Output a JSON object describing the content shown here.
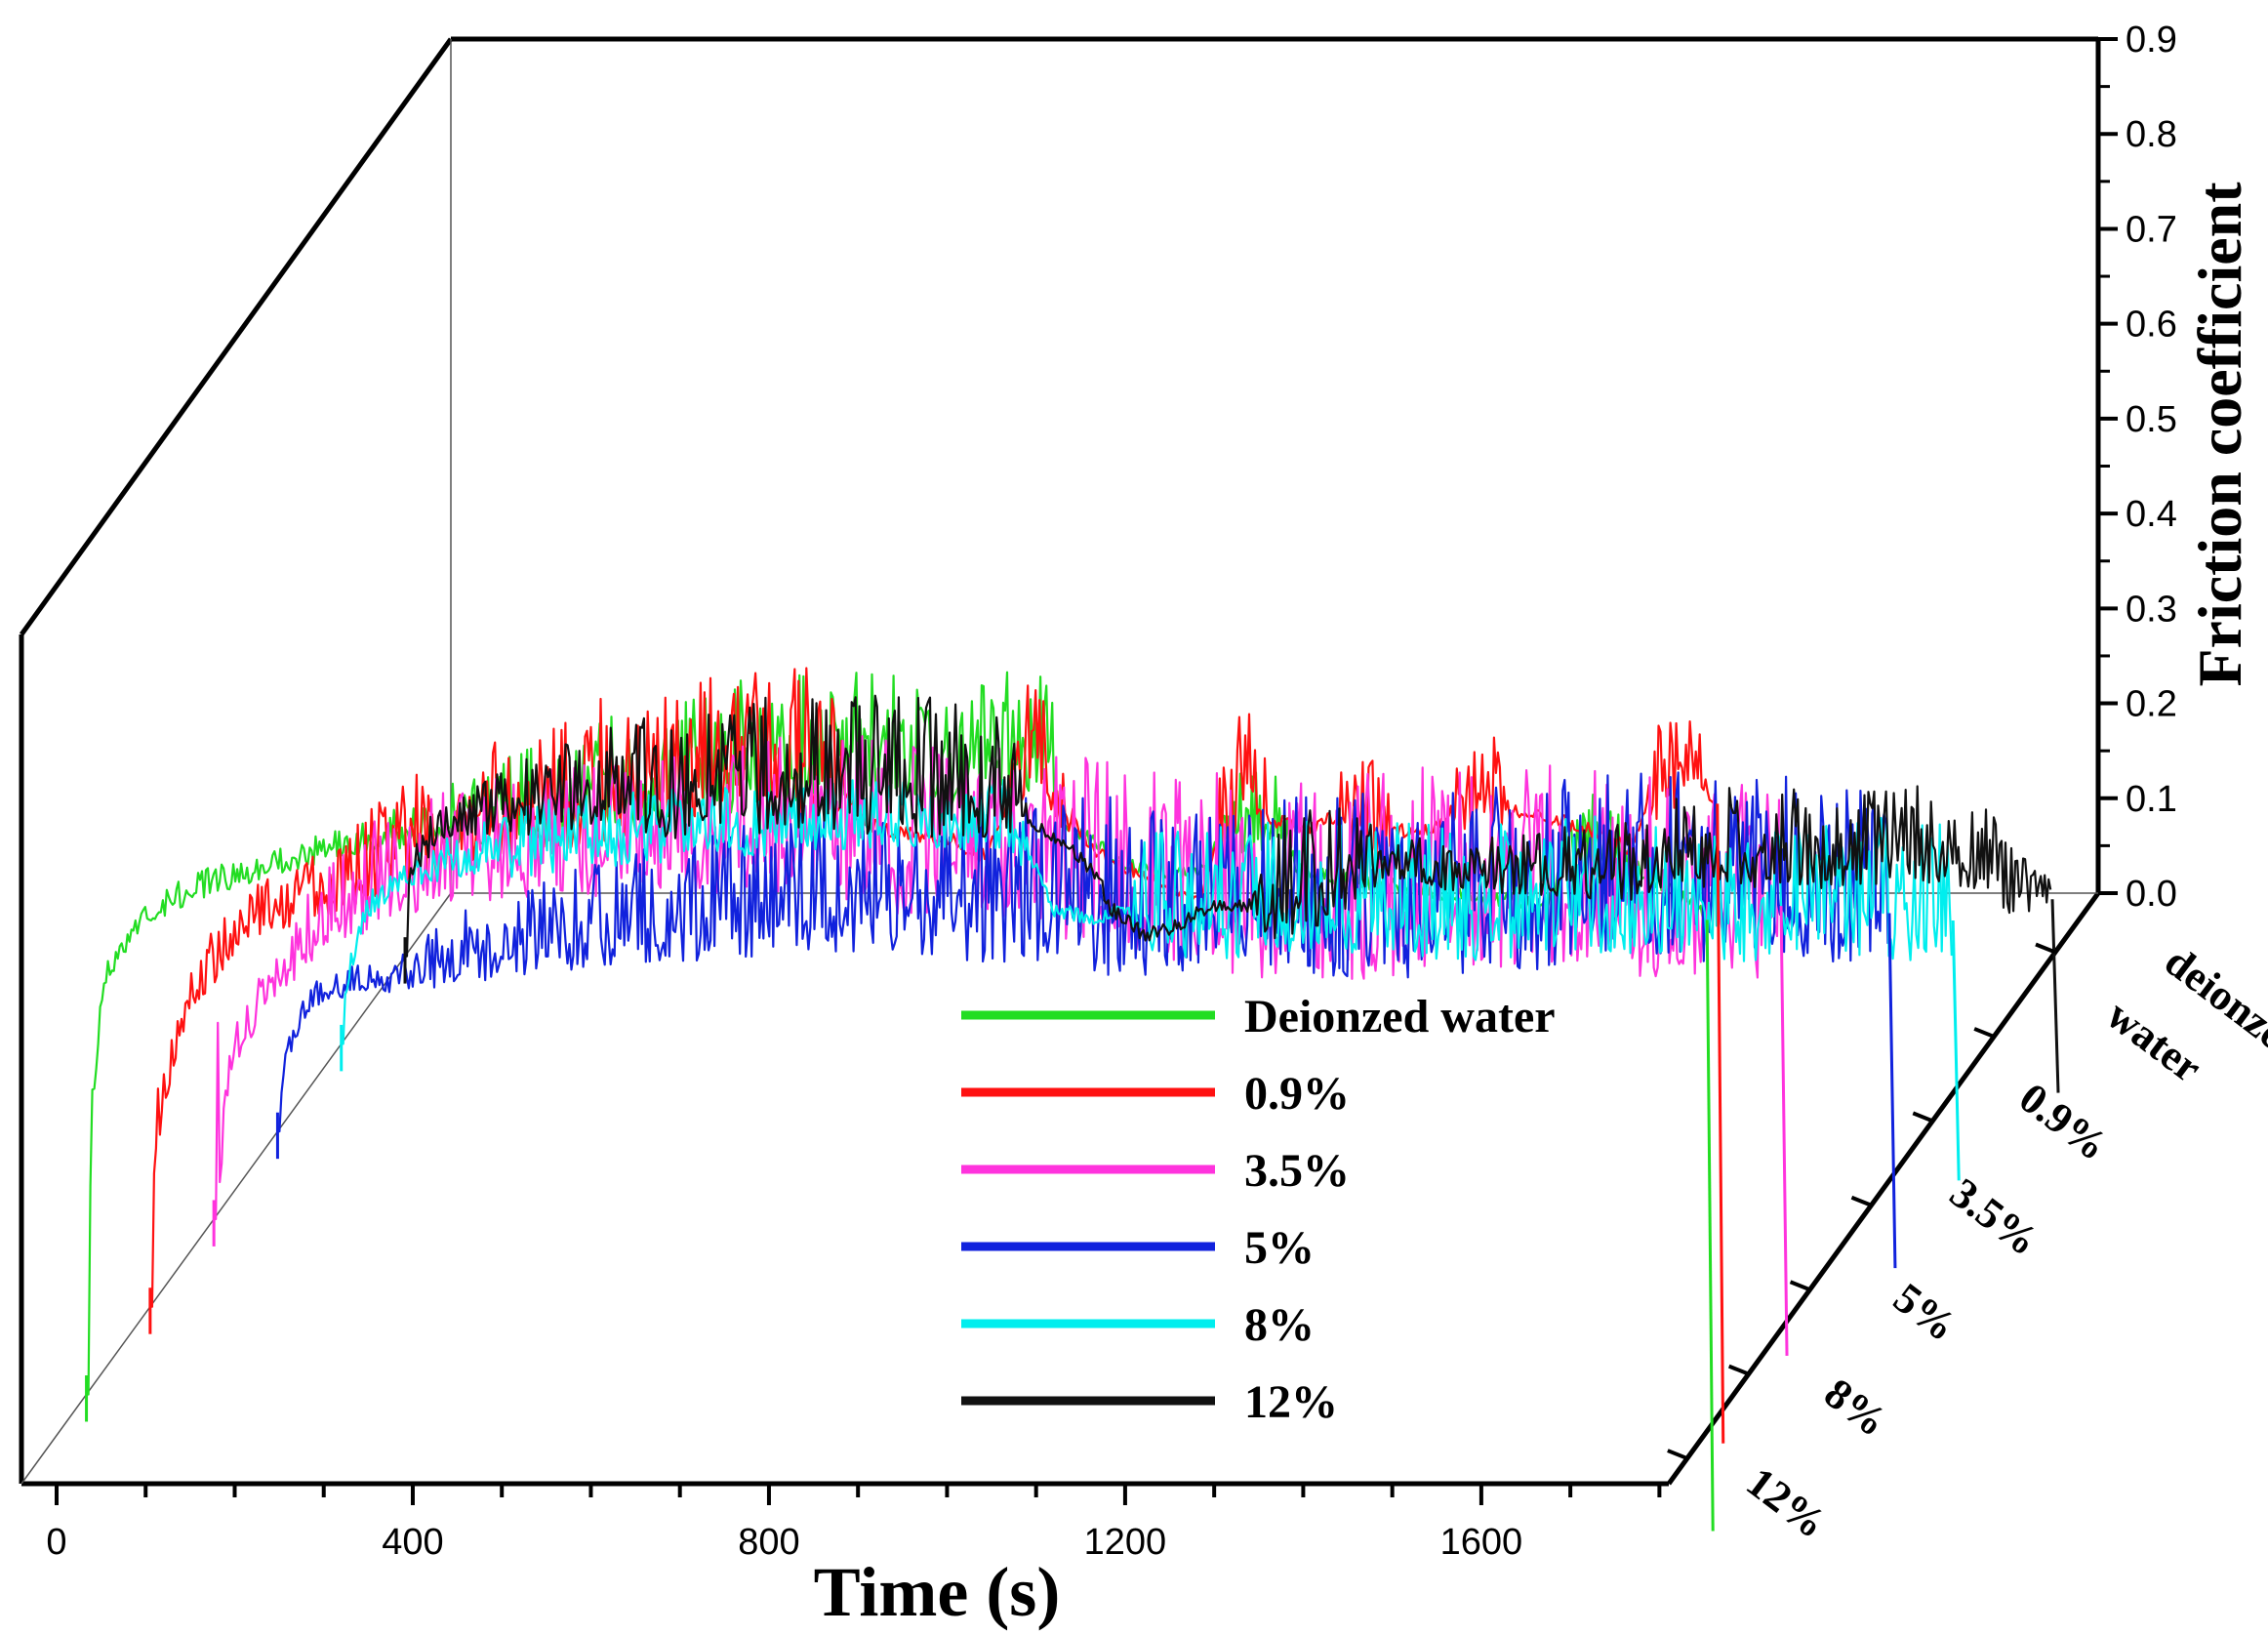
{
  "chart_data": {
    "type": "line",
    "projection": "3d-waterfall",
    "title": "",
    "xlabel": "Time (s)",
    "ylabel": "Friction coefficient",
    "zlabel": "",
    "xlim": [
      0,
      1850
    ],
    "ylim": [
      0,
      0.9
    ],
    "xticks": [
      "0",
      "400",
      "800",
      "1200",
      "1600"
    ],
    "xtick_values": [
      0,
      400,
      800,
      1200,
      1600
    ],
    "yticks": [
      "0.0",
      "0.1",
      "0.2",
      "0.3",
      "0.4",
      "0.5",
      "0.6",
      "0.7",
      "0.8",
      "0.9"
    ],
    "ytick_values": [
      0,
      0.1,
      0.2,
      0.3,
      0.4,
      0.5,
      0.6,
      0.7,
      0.8,
      0.9
    ],
    "z_categories": [
      "12%",
      "8%",
      "5%",
      "3.5%",
      "0.9%",
      "deionzed water"
    ],
    "legend_position": "bottom-center",
    "series": [
      {
        "name": "Deionzed water",
        "z_label": "deionzed water",
        "color": "#22dd22",
        "end_time": 1820,
        "base": [
          [
            0,
            0.02
          ],
          [
            6,
            0.3
          ],
          [
            20,
            0.44
          ],
          [
            60,
            0.5
          ],
          [
            120,
            0.53
          ],
          [
            200,
            0.555
          ],
          [
            300,
            0.58
          ],
          [
            400,
            0.6
          ],
          [
            500,
            0.62
          ],
          [
            600,
            0.64
          ],
          [
            700,
            0.66
          ],
          [
            800,
            0.67
          ],
          [
            900,
            0.675
          ],
          [
            1000,
            0.67
          ],
          [
            1080,
            0.68
          ],
          [
            1100,
            0.6
          ],
          [
            1160,
            0.56
          ],
          [
            1200,
            0.55
          ],
          [
            1260,
            0.55
          ],
          [
            1290,
            0.6
          ],
          [
            1340,
            0.61
          ],
          [
            1360,
            0.55
          ],
          [
            1420,
            0.54
          ],
          [
            1500,
            0.53
          ],
          [
            1560,
            0.52
          ],
          [
            1600,
            0.52
          ],
          [
            1640,
            0.51
          ],
          [
            1660,
            0.56
          ],
          [
            1700,
            0.59
          ],
          [
            1730,
            0.56
          ],
          [
            1760,
            0.54
          ],
          [
            1800,
            0.52
          ],
          [
            1820,
            0.5
          ]
        ],
        "noise": [
          [
            300,
            0.02
          ],
          [
            400,
            0.04
          ],
          [
            500,
            0.07
          ],
          [
            600,
            0.09
          ],
          [
            1080,
            0.09
          ],
          [
            1100,
            0.01
          ],
          [
            1260,
            0.01
          ],
          [
            1290,
            0.06
          ],
          [
            1340,
            0.06
          ],
          [
            1360,
            0.01
          ],
          [
            1650,
            0.01
          ],
          [
            1660,
            0.05
          ],
          [
            1730,
            0.05
          ],
          [
            1740,
            0.01
          ]
        ]
      },
      {
        "name": "0.9%",
        "z_label": "0.9%",
        "color": "#ff1111",
        "end_time": 1760,
        "base": [
          [
            0,
            0.02
          ],
          [
            6,
            0.18
          ],
          [
            40,
            0.32
          ],
          [
            100,
            0.4
          ],
          [
            200,
            0.44
          ],
          [
            300,
            0.49
          ],
          [
            400,
            0.52
          ],
          [
            500,
            0.54
          ],
          [
            600,
            0.56
          ],
          [
            700,
            0.57
          ],
          [
            760,
            0.58
          ],
          [
            790,
            0.52
          ],
          [
            820,
            0.5
          ],
          [
            900,
            0.49
          ],
          [
            940,
            0.47
          ],
          [
            970,
            0.55
          ],
          [
            1000,
            0.59
          ],
          [
            1030,
            0.52
          ],
          [
            1060,
            0.48
          ],
          [
            1100,
            0.46
          ],
          [
            1150,
            0.44
          ],
          [
            1180,
            0.43
          ],
          [
            1200,
            0.5
          ],
          [
            1230,
            0.56
          ],
          [
            1260,
            0.51
          ],
          [
            1300,
            0.5
          ],
          [
            1340,
            0.52
          ],
          [
            1400,
            0.5
          ],
          [
            1440,
            0.5
          ],
          [
            1470,
            0.53
          ],
          [
            1490,
            0.55
          ],
          [
            1530,
            0.52
          ],
          [
            1580,
            0.51
          ],
          [
            1620,
            0.5
          ],
          [
            1660,
            0.48
          ],
          [
            1690,
            0.54
          ],
          [
            1720,
            0.57
          ],
          [
            1740,
            0.55
          ],
          [
            1760,
            0.53
          ]
        ],
        "noise": [
          [
            150,
            0.04
          ],
          [
            300,
            0.08
          ],
          [
            500,
            0.1
          ],
          [
            760,
            0.1
          ],
          [
            790,
            0.01
          ],
          [
            960,
            0.01
          ],
          [
            980,
            0.09
          ],
          [
            1020,
            0.09
          ],
          [
            1040,
            0.01
          ],
          [
            1190,
            0.01
          ],
          [
            1200,
            0.08
          ],
          [
            1250,
            0.08
          ],
          [
            1260,
            0.01
          ],
          [
            1330,
            0.01
          ],
          [
            1340,
            0.07
          ],
          [
            1380,
            0.07
          ],
          [
            1400,
            0.01
          ],
          [
            1460,
            0.01
          ],
          [
            1470,
            0.07
          ],
          [
            1510,
            0.07
          ],
          [
            1530,
            0.01
          ],
          [
            1680,
            0.01
          ],
          [
            1690,
            0.07
          ],
          [
            1740,
            0.07
          ],
          [
            1750,
            0.01
          ]
        ]
      },
      {
        "name": "3.5%",
        "z_label": "3.5%",
        "color": "#ff33dd",
        "end_time": 1760,
        "base": [
          [
            0,
            0.02
          ],
          [
            2,
            0.45
          ],
          [
            6,
            0.05
          ],
          [
            20,
            0.17
          ],
          [
            60,
            0.24
          ],
          [
            120,
            0.31
          ],
          [
            200,
            0.36
          ],
          [
            300,
            0.38
          ],
          [
            400,
            0.39
          ],
          [
            500,
            0.39
          ],
          [
            600,
            0.4
          ],
          [
            700,
            0.4
          ],
          [
            800,
            0.38
          ],
          [
            900,
            0.37
          ],
          [
            1000,
            0.36
          ],
          [
            1100,
            0.34
          ],
          [
            1150,
            0.33
          ],
          [
            1200,
            0.33
          ],
          [
            1300,
            0.33
          ],
          [
            1400,
            0.34
          ],
          [
            1500,
            0.34
          ],
          [
            1600,
            0.33
          ],
          [
            1700,
            0.33
          ],
          [
            1760,
            0.33
          ]
        ],
        "noise": [
          [
            50,
            0.03
          ],
          [
            150,
            0.07
          ],
          [
            400,
            0.09
          ],
          [
            800,
            0.12
          ],
          [
            1200,
            0.14
          ],
          [
            1760,
            0.14
          ]
        ]
      },
      {
        "name": "5%",
        "z_label": "5%",
        "color": "#1122dd",
        "end_time": 1810,
        "base": [
          [
            0,
            0.02
          ],
          [
            10,
            0.08
          ],
          [
            30,
            0.13
          ],
          [
            60,
            0.15
          ],
          [
            120,
            0.16
          ],
          [
            200,
            0.18
          ],
          [
            300,
            0.2
          ],
          [
            400,
            0.22
          ],
          [
            500,
            0.23
          ],
          [
            600,
            0.24
          ],
          [
            700,
            0.25
          ],
          [
            800,
            0.24
          ],
          [
            900,
            0.23
          ],
          [
            1000,
            0.23
          ],
          [
            1100,
            0.24
          ],
          [
            1200,
            0.23
          ],
          [
            1300,
            0.23
          ],
          [
            1400,
            0.24
          ],
          [
            1500,
            0.25
          ],
          [
            1600,
            0.25
          ],
          [
            1700,
            0.25
          ],
          [
            1780,
            0.24
          ],
          [
            1810,
            0.23
          ]
        ],
        "noise": [
          [
            100,
            0.02
          ],
          [
            200,
            0.05
          ],
          [
            400,
            0.08
          ],
          [
            800,
            0.12
          ],
          [
            1400,
            0.13
          ],
          [
            1810,
            0.13
          ]
        ]
      },
      {
        "name": "8%",
        "z_label": "8%",
        "color": "#00eeee",
        "end_time": 1810,
        "base": [
          [
            0,
            0.02
          ],
          [
            3,
            0.05
          ],
          [
            10,
            0.08
          ],
          [
            30,
            0.14
          ],
          [
            60,
            0.17
          ],
          [
            120,
            0.19
          ],
          [
            250,
            0.21
          ],
          [
            400,
            0.22
          ],
          [
            600,
            0.23
          ],
          [
            750,
            0.23
          ],
          [
            780,
            0.19
          ],
          [
            800,
            0.14
          ],
          [
            840,
            0.13
          ],
          [
            900,
            0.14
          ],
          [
            1000,
            0.14
          ],
          [
            1100,
            0.15
          ],
          [
            1200,
            0.14
          ],
          [
            1300,
            0.14
          ],
          [
            1400,
            0.15
          ],
          [
            1500,
            0.14
          ],
          [
            1600,
            0.14
          ],
          [
            1700,
            0.14
          ],
          [
            1780,
            0.14
          ],
          [
            1810,
            0.13
          ]
        ],
        "noise": [
          [
            80,
            0.02
          ],
          [
            200,
            0.05
          ],
          [
            400,
            0.05
          ],
          [
            760,
            0.05
          ],
          [
            780,
            0.01
          ],
          [
            880,
            0.01
          ],
          [
            900,
            0.09
          ],
          [
            1810,
            0.1
          ]
        ]
      },
      {
        "name": "12%",
        "z_label": "12%",
        "color": "#111111",
        "end_time": 1850,
        "base": [
          [
            0,
            0.0
          ],
          [
            5,
            0.07
          ],
          [
            10,
            0.09
          ],
          [
            30,
            0.12
          ],
          [
            60,
            0.14
          ],
          [
            100,
            0.15
          ],
          [
            150,
            0.16
          ],
          [
            250,
            0.17
          ],
          [
            400,
            0.18
          ],
          [
            600,
            0.18
          ],
          [
            680,
            0.17
          ],
          [
            700,
            0.14
          ],
          [
            740,
            0.12
          ],
          [
            780,
            0.08
          ],
          [
            790,
            0.05
          ],
          [
            830,
            0.02
          ],
          [
            870,
            0.03
          ],
          [
            900,
            0.05
          ],
          [
            960,
            0.05
          ],
          [
            1000,
            0.07
          ],
          [
            1050,
            0.08
          ],
          [
            1100,
            0.1
          ],
          [
            1150,
            0.09
          ],
          [
            1200,
            0.09
          ],
          [
            1300,
            0.09
          ],
          [
            1350,
            0.08
          ],
          [
            1400,
            0.1
          ],
          [
            1480,
            0.11
          ],
          [
            1550,
            0.11
          ],
          [
            1600,
            0.11
          ],
          [
            1700,
            0.11
          ],
          [
            1780,
            0.1
          ],
          [
            1800,
            0.07
          ],
          [
            1850,
            0.06
          ]
        ],
        "noise": [
          [
            60,
            0.03
          ],
          [
            150,
            0.06
          ],
          [
            300,
            0.09
          ],
          [
            600,
            0.1
          ],
          [
            680,
            0.08
          ],
          [
            700,
            0.01
          ],
          [
            950,
            0.01
          ],
          [
            980,
            0.09
          ],
          [
            1050,
            0.08
          ],
          [
            1100,
            0.03
          ],
          [
            1200,
            0.04
          ],
          [
            1300,
            0.05
          ],
          [
            1500,
            0.07
          ],
          [
            1700,
            0.07
          ],
          [
            1800,
            0.05
          ],
          [
            1850,
            0.02
          ]
        ]
      }
    ]
  }
}
